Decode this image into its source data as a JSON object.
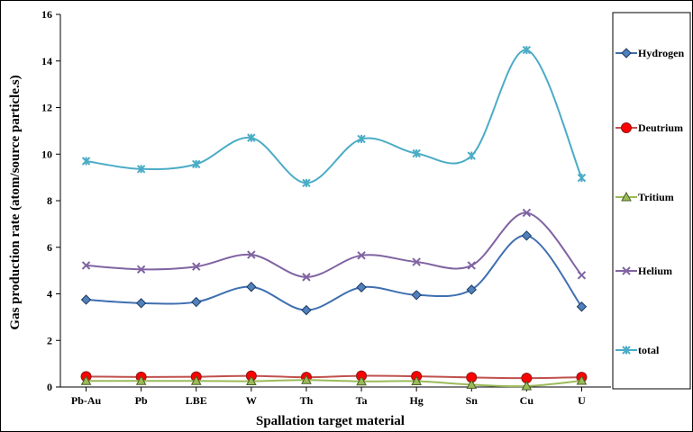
{
  "chart_data": {
    "type": "line",
    "xlabel": "Spallation  target material",
    "ylabel": "Gas production rate (atom/source particle.s)",
    "categories": [
      "Pb-Au",
      "Pb",
      "LBE",
      "W",
      "Th",
      "Ta",
      "Hg",
      "Sn",
      "Cu",
      "U"
    ],
    "ylim": [
      0,
      16
    ],
    "yticks": [
      0,
      2,
      4,
      6,
      8,
      10,
      12,
      14,
      16
    ],
    "smooth": true,
    "grid": false,
    "legend_position": "right",
    "series": [
      {
        "name": "Hydrogen",
        "color": "#3f6fb0",
        "marker": "diamond",
        "marker_fill": "#4f81bd",
        "values": [
          3.75,
          3.6,
          3.65,
          4.3,
          3.3,
          4.28,
          3.95,
          4.18,
          6.5,
          3.45
        ]
      },
      {
        "name": "Deutrium",
        "color": "#c0504d",
        "marker": "circle",
        "marker_fill": "#ff0000",
        "values": [
          0.45,
          0.43,
          0.44,
          0.48,
          0.42,
          0.48,
          0.46,
          0.41,
          0.38,
          0.42
        ]
      },
      {
        "name": "Tritium",
        "color": "#9bbb59",
        "marker": "triangle",
        "marker_fill": "#9bbb59",
        "values": [
          0.26,
          0.26,
          0.26,
          0.25,
          0.3,
          0.24,
          0.25,
          0.1,
          0.04,
          0.27
        ]
      },
      {
        "name": "Helium",
        "color": "#8064a2",
        "marker": "x",
        "marker_fill": "#8064a2",
        "values": [
          5.22,
          5.05,
          5.17,
          5.68,
          4.72,
          5.65,
          5.37,
          5.22,
          7.48,
          4.8
        ]
      },
      {
        "name": "total",
        "color": "#4bacc6",
        "marker": "asterisk",
        "marker_fill": "#4bacc6",
        "values": [
          9.7,
          9.36,
          9.57,
          10.7,
          8.76,
          10.65,
          10.03,
          9.93,
          14.47,
          8.98
        ]
      }
    ]
  }
}
